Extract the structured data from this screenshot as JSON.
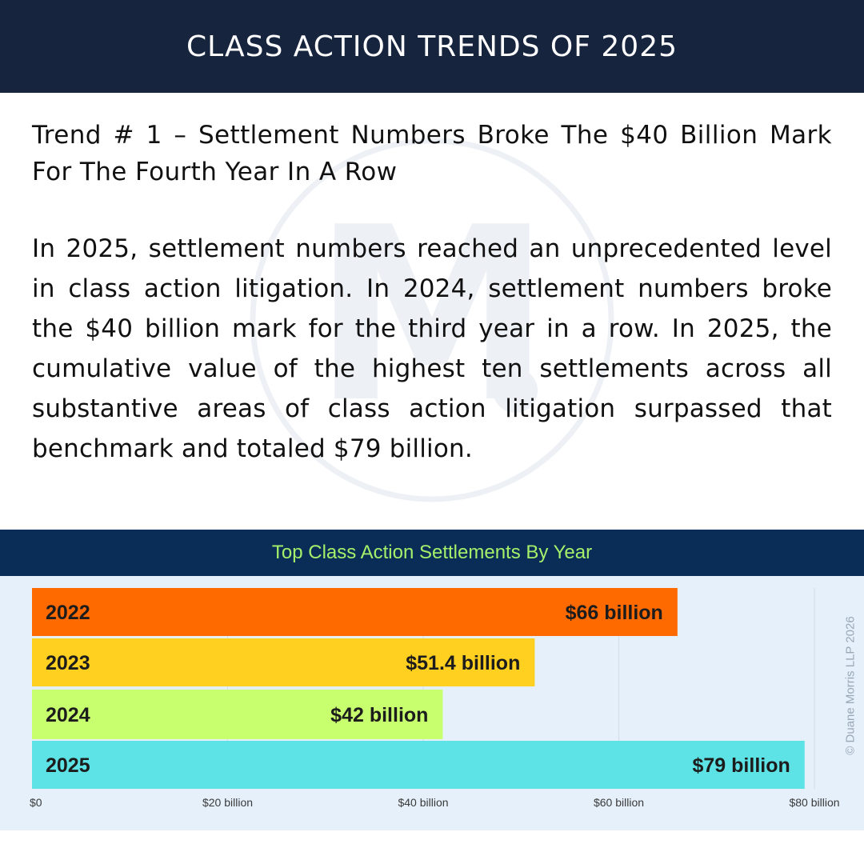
{
  "header": {
    "title": "CLASS ACTION TRENDS OF 2025"
  },
  "article": {
    "trend_title": "Trend # 1 – Settlement Numbers Broke The $40 Billion Mark For The Fourth Year In A Row",
    "body": "In 2025, settlement numbers reached an unprecedented level in class action litigation. In 2024, settlement num­bers broke the $40 billion mark for the third year in a row. In 2025, the cumulative value of the highest ten settle­ments across all substantive areas of class action litiga­tion surpassed that benchmark and totaled $79 billion."
  },
  "watermark": {
    "letter": "M"
  },
  "chart_data": {
    "type": "bar",
    "orientation": "horizontal",
    "title": "Top Class Action Settlements By Year",
    "categories": [
      "2022",
      "2023",
      "2024",
      "2025"
    ],
    "values": [
      66,
      51.4,
      42,
      79
    ],
    "value_labels": [
      "$66 billion",
      "$51.4 billion",
      "$42 billion",
      "$79 billion"
    ],
    "colors": [
      "#ff6a00",
      "#ffd020",
      "#c8ff6e",
      "#5de3e6"
    ],
    "xlim": [
      0,
      80
    ],
    "x_ticks": [
      0,
      20,
      40,
      60,
      80
    ],
    "x_tick_labels": [
      "$0",
      "$20 billion",
      "$40 billion",
      "$60 billion",
      "$80 billion"
    ],
    "xlabel": "",
    "ylabel": "",
    "grid": true,
    "legend": "none",
    "copyright": "© Duane Morris LLP 2026"
  }
}
